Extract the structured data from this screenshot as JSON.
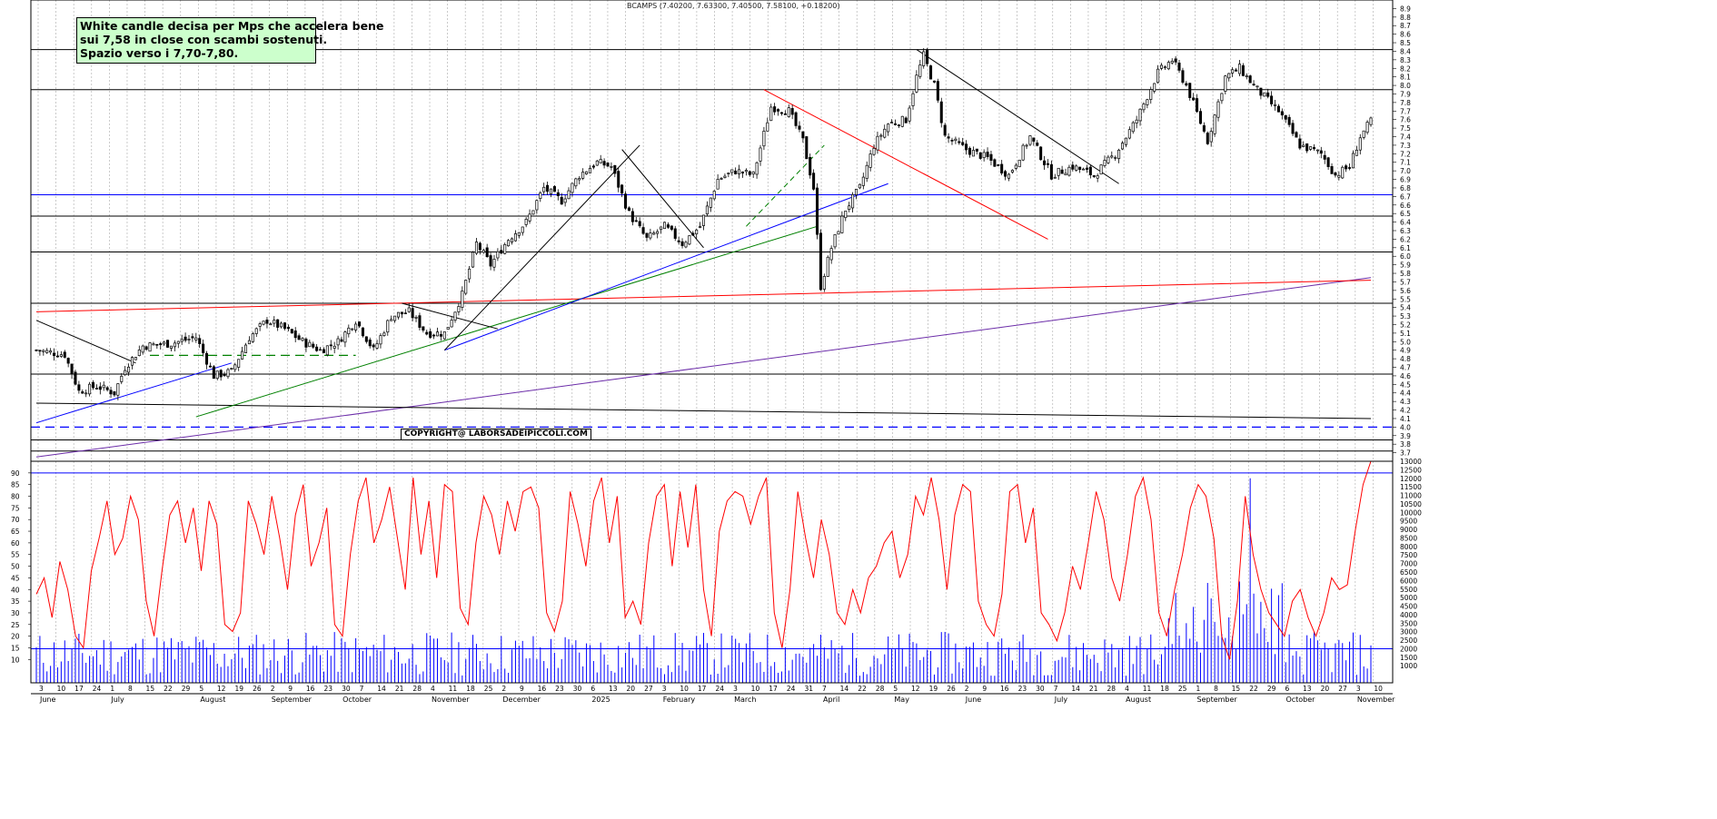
{
  "header": {
    "instrument": "BCAMPS (7.40200, 7.63300, 7.40500, 7.58100, +0.18200)"
  },
  "annotation": {
    "lines": [
      "White candle decisa per Mps che accelera bene",
      "sui 7,58 in close con scambi sostenuti.",
      "Spazio verso i 7,70-7,80."
    ]
  },
  "copyright": "COPYRIGHT@ LABORSADEIPICCOLI.COM",
  "colors": {
    "candle_body": "#000000",
    "grid": "#b5b5b5",
    "rsi_line": "#ff0000",
    "volume_bars": "#0000ff",
    "trendline_red": "#ff0000",
    "trendline_blue": "#0000ff",
    "trendline_green": "#008000",
    "trendline_purple": "#6b2ca8",
    "support_dashed": "#0000ff"
  },
  "chart_data": [
    {
      "type": "candlestick",
      "panel": "price",
      "ylim": [
        3.6,
        9.0
      ],
      "y_ticks": [
        3.7,
        3.8,
        3.9,
        4.0,
        4.1,
        4.2,
        4.3,
        4.4,
        4.5,
        4.6,
        4.7,
        4.8,
        4.9,
        5.0,
        5.1,
        5.2,
        5.3,
        5.4,
        5.5,
        5.6,
        5.7,
        5.8,
        5.9,
        6.0,
        6.1,
        6.2,
        6.3,
        6.4,
        6.5,
        6.6,
        6.7,
        6.8,
        6.9,
        7.0,
        7.1,
        7.2,
        7.3,
        7.4,
        7.5,
        7.6,
        7.7,
        7.8,
        7.9,
        8.0,
        8.1,
        8.2,
        8.3,
        8.4,
        8.5,
        8.6,
        8.7,
        8.8,
        8.9
      ],
      "x_range_bars": [
        0,
        376
      ],
      "close_series": [
        {
          "bar": 0,
          "v": 4.9
        },
        {
          "bar": 8,
          "v": 4.85
        },
        {
          "bar": 12,
          "v": 4.42
        },
        {
          "bar": 17,
          "v": 4.48
        },
        {
          "bar": 22,
          "v": 4.4
        },
        {
          "bar": 25,
          "v": 4.7
        },
        {
          "bar": 30,
          "v": 4.95
        },
        {
          "bar": 38,
          "v": 4.98
        },
        {
          "bar": 45,
          "v": 5.05
        },
        {
          "bar": 50,
          "v": 4.6
        },
        {
          "bar": 55,
          "v": 4.65
        },
        {
          "bar": 60,
          "v": 5.05
        },
        {
          "bar": 65,
          "v": 5.25
        },
        {
          "bar": 70,
          "v": 5.15
        },
        {
          "bar": 75,
          "v": 5.0
        },
        {
          "bar": 80,
          "v": 4.9
        },
        {
          "bar": 85,
          "v": 5.0
        },
        {
          "bar": 90,
          "v": 5.25
        },
        {
          "bar": 95,
          "v": 4.9
        },
        {
          "bar": 100,
          "v": 5.3
        },
        {
          "bar": 105,
          "v": 5.35
        },
        {
          "bar": 110,
          "v": 5.1
        },
        {
          "bar": 115,
          "v": 5.1
        },
        {
          "bar": 120,
          "v": 5.55
        },
        {
          "bar": 124,
          "v": 6.15
        },
        {
          "bar": 128,
          "v": 5.9
        },
        {
          "bar": 133,
          "v": 6.2
        },
        {
          "bar": 138,
          "v": 6.4
        },
        {
          "bar": 143,
          "v": 6.8
        },
        {
          "bar": 148,
          "v": 6.65
        },
        {
          "bar": 153,
          "v": 6.95
        },
        {
          "bar": 158,
          "v": 7.1
        },
        {
          "bar": 162,
          "v": 7.05
        },
        {
          "bar": 167,
          "v": 6.5
        },
        {
          "bar": 172,
          "v": 6.2
        },
        {
          "bar": 177,
          "v": 6.35
        },
        {
          "bar": 182,
          "v": 6.15
        },
        {
          "bar": 187,
          "v": 6.35
        },
        {
          "bar": 192,
          "v": 6.9
        },
        {
          "bar": 197,
          "v": 7.0
        },
        {
          "bar": 202,
          "v": 6.95
        },
        {
          "bar": 207,
          "v": 7.75
        },
        {
          "bar": 212,
          "v": 7.7
        },
        {
          "bar": 216,
          "v": 7.35
        },
        {
          "bar": 219,
          "v": 6.8
        },
        {
          "bar": 221,
          "v": 5.65
        },
        {
          "bar": 224,
          "v": 6.1
        },
        {
          "bar": 228,
          "v": 6.55
        },
        {
          "bar": 232,
          "v": 6.8
        },
        {
          "bar": 236,
          "v": 7.3
        },
        {
          "bar": 240,
          "v": 7.55
        },
        {
          "bar": 245,
          "v": 7.6
        },
        {
          "bar": 248,
          "v": 8.1
        },
        {
          "bar": 250,
          "v": 8.35
        },
        {
          "bar": 253,
          "v": 8.0
        },
        {
          "bar": 256,
          "v": 7.4
        },
        {
          "bar": 262,
          "v": 7.25
        },
        {
          "bar": 268,
          "v": 7.15
        },
        {
          "bar": 274,
          "v": 6.95
        },
        {
          "bar": 280,
          "v": 7.4
        },
        {
          "bar": 286,
          "v": 6.95
        },
        {
          "bar": 292,
          "v": 7.05
        },
        {
          "bar": 298,
          "v": 6.95
        },
        {
          "bar": 304,
          "v": 7.2
        },
        {
          "bar": 310,
          "v": 7.6
        },
        {
          "bar": 316,
          "v": 8.15
        },
        {
          "bar": 320,
          "v": 8.3
        },
        {
          "bar": 324,
          "v": 8.0
        },
        {
          "bar": 330,
          "v": 7.35
        },
        {
          "bar": 335,
          "v": 8.1
        },
        {
          "bar": 339,
          "v": 8.2
        },
        {
          "bar": 344,
          "v": 7.95
        },
        {
          "bar": 350,
          "v": 7.7
        },
        {
          "bar": 356,
          "v": 7.3
        },
        {
          "bar": 362,
          "v": 7.2
        },
        {
          "bar": 366,
          "v": 6.95
        },
        {
          "bar": 370,
          "v": 7.05
        },
        {
          "bar": 373,
          "v": 7.4
        },
        {
          "bar": 376,
          "v": 7.58
        }
      ],
      "horizontal_levels": [
        8.42,
        7.95,
        6.72,
        6.47,
        6.05,
        5.45,
        4.62,
        3.85,
        3.72
      ],
      "dashed_support": 4.0,
      "x_tick_days": [
        "3",
        "10",
        "17",
        "24",
        "1",
        "8",
        "15",
        "22",
        "29",
        "5",
        "12",
        "19",
        "26",
        "2",
        "9",
        "16",
        "23",
        "30",
        "7",
        "14",
        "21",
        "28",
        "4",
        "11",
        "18",
        "25",
        "2",
        "9",
        "16",
        "23",
        "30",
        "6",
        "13",
        "20",
        "27",
        "3",
        "10",
        "17",
        "24",
        "3",
        "10",
        "17",
        "24",
        "31",
        "7",
        "14",
        "22",
        "28",
        "5",
        "12",
        "19",
        "26",
        "2",
        "9",
        "16",
        "23",
        "30",
        "7",
        "14",
        "21",
        "28",
        "4",
        "11",
        "18",
        "25",
        "1",
        "8",
        "15",
        "22",
        "29",
        "6",
        "13",
        "20",
        "27",
        "3",
        "10"
      ],
      "x_tick_months": [
        "June",
        "July",
        "August",
        "September",
        "October",
        "November",
        "December",
        "2025",
        "February",
        "March",
        "April",
        "May",
        "June",
        "July",
        "August",
        "September",
        "October",
        "November"
      ]
    },
    {
      "type": "line",
      "panel": "oscillator",
      "series": [
        {
          "values": [
            38,
            45,
            28,
            52,
            40,
            20,
            15,
            48,
            62,
            78,
            55,
            62,
            80,
            70,
            35,
            20,
            48,
            72,
            78,
            60,
            75,
            48,
            78,
            68,
            25,
            22,
            30,
            78,
            68,
            55,
            80,
            62,
            40,
            72,
            85,
            50,
            60,
            75,
            25,
            20,
            55,
            78,
            88,
            60,
            70,
            84,
            62,
            40,
            88,
            55,
            78,
            45,
            85,
            82,
            32,
            25,
            60,
            80,
            72,
            55,
            78,
            65,
            82,
            84,
            75,
            30,
            22,
            35,
            82,
            68,
            50,
            78,
            88,
            60,
            80,
            28,
            35,
            25,
            60,
            80,
            85,
            50,
            82,
            58,
            85,
            40,
            20,
            65,
            78,
            82,
            80,
            68,
            80,
            88,
            30,
            15,
            40,
            82,
            62,
            45,
            70,
            55,
            30,
            25,
            40,
            30,
            45,
            50,
            60,
            65,
            45,
            55,
            80,
            72,
            88,
            70,
            40,
            72,
            85,
            82,
            35,
            25,
            20,
            38,
            82,
            85,
            60,
            75,
            30,
            25,
            18,
            30,
            50,
            40,
            60,
            82,
            70,
            45,
            35,
            55,
            80,
            88,
            70,
            30,
            20,
            40,
            55,
            75,
            85,
            80,
            62,
            20,
            10,
            35,
            80,
            55,
            40,
            30,
            25,
            20,
            35,
            40,
            28,
            20,
            30,
            45,
            40,
            42,
            65,
            85,
            95
          ]
        }
      ],
      "ylim": [
        0,
        95
      ],
      "y_ticks": [
        10,
        15,
        20,
        25,
        30,
        35,
        40,
        45,
        50,
        55,
        60,
        65,
        70,
        75,
        80,
        85,
        90
      ]
    },
    {
      "type": "bar",
      "panel": "volume",
      "ylim": [
        0,
        13000
      ],
      "y_ticks": [
        1000,
        1500,
        2000,
        2500,
        3000,
        3500,
        4000,
        4500,
        5000,
        5500,
        6000,
        6500,
        7000,
        7500,
        8000,
        8500,
        9000,
        9500,
        10000,
        10500,
        11000,
        11500,
        12000,
        12500,
        13000
      ],
      "reference_line": 2000
    }
  ]
}
